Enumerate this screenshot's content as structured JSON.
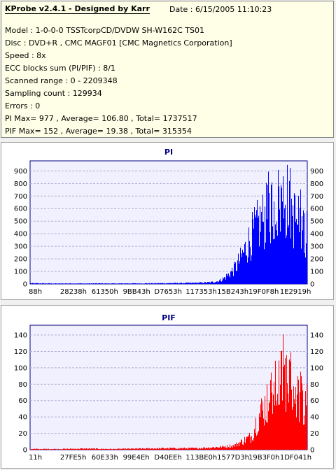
{
  "info": {
    "title": "KProbe v2.4.1 - Designed by Karr",
    "date": "Date : 6/15/2005 11:10:23",
    "model": "Model : 1-0-0-0 TSSTcorpCD/DVDW SH-W162C TS01",
    "disc": "Disc : DVD+R , CMC MAGF01 [CMC Magnetics Corporation]",
    "speed": "Speed : 8x",
    "ecc": "ECC blocks sum (PI/PIF) : 8/1",
    "scanned": "Scanned range : 0 - 2209348",
    "sampling": "Sampling count : 129934",
    "errors": "Errors : 0",
    "pi_stats": "PI Max= 977 , Average= 106.80 , Total= 1737517",
    "pif_stats": "PIF Max= 152 , Average= 19.38 , Total= 315354"
  },
  "colors": {
    "pi": "#0000ff",
    "pif": "#ff0000",
    "plot_bg": "#f0f0ff",
    "grid": "#b0b0d0"
  },
  "chart_data": [
    {
      "type": "bar",
      "title": "PI",
      "series": [
        {
          "values_note": "",
          "color": "#0000ff"
        }
      ],
      "ylim": [
        0,
        977
      ],
      "yticks": [
        0,
        100,
        200,
        300,
        400,
        500,
        600,
        700,
        800,
        900
      ],
      "xtick_labels": [
        "88h",
        "28238h",
        "61350h",
        "9BB43h",
        "D7653h",
        "117353h",
        "15B243h",
        "19F0F8h",
        "1E2919h"
      ],
      "grid": true,
      "profile": [
        [
          0.0,
          6
        ],
        [
          0.05,
          5
        ],
        [
          0.1,
          4
        ],
        [
          0.15,
          5
        ],
        [
          0.2,
          4
        ],
        [
          0.25,
          5
        ],
        [
          0.3,
          4
        ],
        [
          0.35,
          5
        ],
        [
          0.4,
          5
        ],
        [
          0.45,
          6
        ],
        [
          0.5,
          7
        ],
        [
          0.55,
          8
        ],
        [
          0.6,
          10
        ],
        [
          0.65,
          14
        ],
        [
          0.68,
          25
        ],
        [
          0.7,
          50
        ],
        [
          0.72,
          90
        ],
        [
          0.74,
          140
        ],
        [
          0.76,
          220
        ],
        [
          0.78,
          320
        ],
        [
          0.8,
          420
        ],
        [
          0.82,
          500
        ],
        [
          0.84,
          560
        ],
        [
          0.86,
          620
        ],
        [
          0.88,
          680
        ],
        [
          0.9,
          720
        ],
        [
          0.92,
          760
        ],
        [
          0.94,
          700
        ],
        [
          0.95,
          600
        ],
        [
          0.97,
          520
        ],
        [
          0.99,
          480
        ],
        [
          1.0,
          440
        ]
      ]
    },
    {
      "type": "bar",
      "title": "PIF",
      "series": [
        {
          "values_note": "",
          "color": "#ff0000"
        }
      ],
      "ylim": [
        0,
        152
      ],
      "yticks": [
        0,
        20,
        40,
        60,
        80,
        100,
        120,
        140
      ],
      "xtick_labels": [
        "11h",
        "27FE5h",
        "60E33h",
        "99E4Eh",
        "D40EEh",
        "113BE0h",
        "1577D3h",
        "19B3F0h",
        "1DF041h"
      ],
      "grid": true,
      "profile": [
        [
          0.0,
          1
        ],
        [
          0.1,
          1
        ],
        [
          0.2,
          1.5
        ],
        [
          0.3,
          1
        ],
        [
          0.4,
          1.5
        ],
        [
          0.5,
          2
        ],
        [
          0.6,
          2
        ],
        [
          0.65,
          3
        ],
        [
          0.7,
          4
        ],
        [
          0.74,
          6
        ],
        [
          0.76,
          10
        ],
        [
          0.78,
          14
        ],
        [
          0.8,
          18
        ],
        [
          0.82,
          40
        ],
        [
          0.84,
          55
        ],
        [
          0.86,
          65
        ],
        [
          0.88,
          78
        ],
        [
          0.9,
          90
        ],
        [
          0.92,
          100
        ],
        [
          0.94,
          95
        ],
        [
          0.95,
          85
        ],
        [
          0.97,
          70
        ],
        [
          0.99,
          60
        ],
        [
          1.0,
          55
        ]
      ]
    }
  ]
}
